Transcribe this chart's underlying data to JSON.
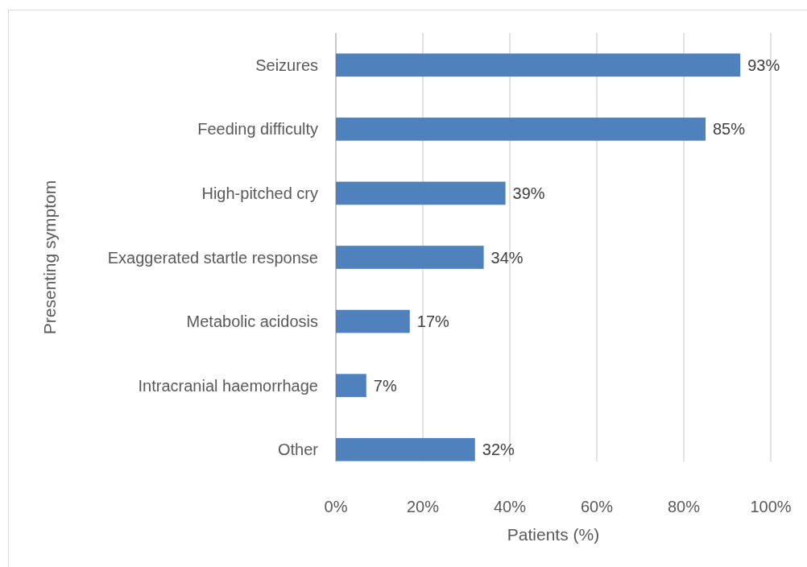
{
  "chart_data": {
    "type": "bar",
    "orientation": "horizontal",
    "xlabel": "Patients (%)",
    "ylabel": "Presenting symptom",
    "categories": [
      "Seizures",
      "Feeding difficulty",
      "High-pitched cry",
      "Exaggerated startle response",
      "Metabolic acidosis",
      "Intracranial haemorrhage",
      "Other"
    ],
    "values": [
      93,
      85,
      39,
      34,
      17,
      7,
      32
    ],
    "value_labels": [
      "93%",
      "85%",
      "39%",
      "34%",
      "17%",
      "7%",
      "32%"
    ],
    "color": "#4f81bd",
    "xlim": [
      0,
      100
    ],
    "xticks": [
      {
        "value": 0,
        "label": "0%"
      },
      {
        "value": 20,
        "label": "20%"
      },
      {
        "value": 40,
        "label": "40%"
      },
      {
        "value": 60,
        "label": "60%"
      },
      {
        "value": 80,
        "label": "80%"
      },
      {
        "value": 100,
        "label": "100%"
      }
    ],
    "grid": "x"
  }
}
